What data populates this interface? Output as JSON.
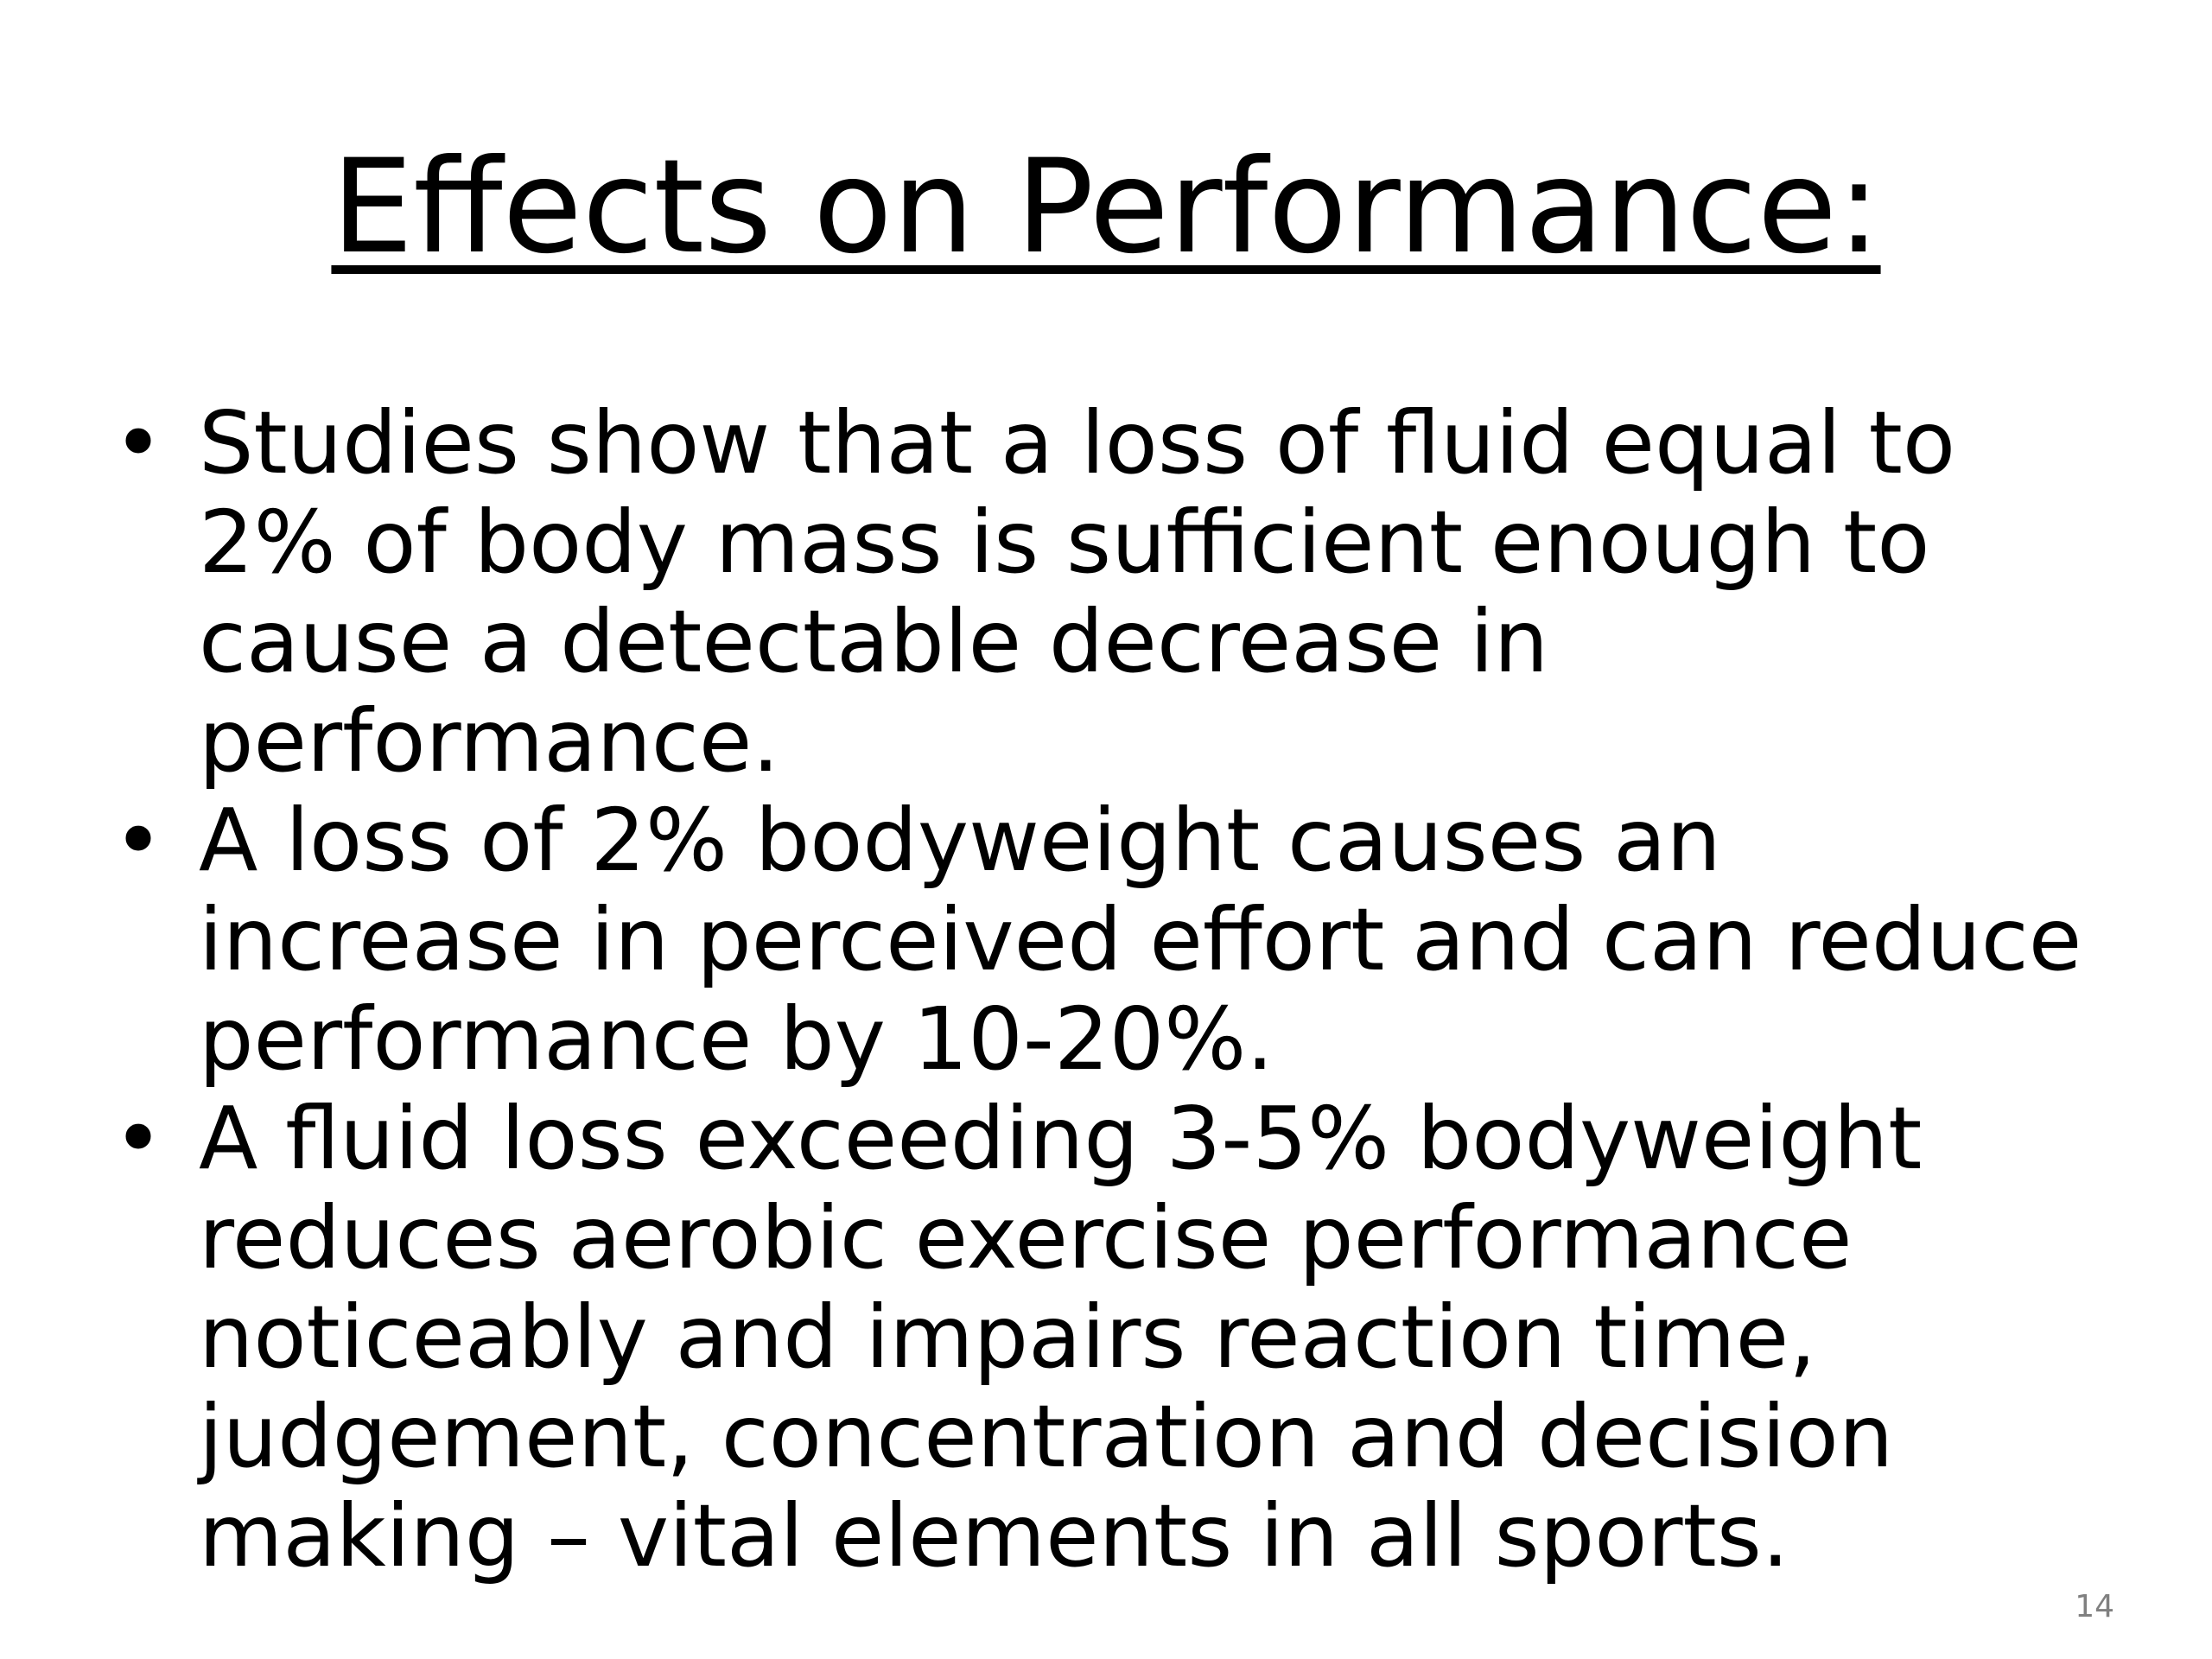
{
  "slide": {
    "title": "Effects on Performance:",
    "bullet_symbol": "•",
    "bullets": [
      "Studies show that a loss of fluid equal to 2% of body mass is sufficient enough to cause a detectable decrease in performance.",
      "A loss of 2% bodyweight causes an increase in perceived effort and can reduce performance by 10-20%.",
      "A fluid loss exceeding 3-5% bodyweight reduces aerobic exercise performance noticeably and impairs reaction time, judgement, concentration and decision making – vital elements in all sports."
    ],
    "page_number": "14"
  }
}
